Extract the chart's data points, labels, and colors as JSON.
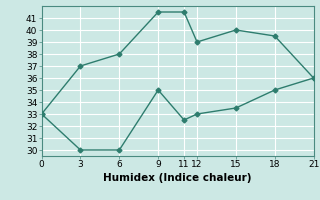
{
  "line1_x": [
    0,
    3,
    6,
    9,
    11,
    12,
    15,
    18,
    21
  ],
  "line1_y": [
    33,
    37,
    38,
    41.5,
    41.5,
    39,
    40,
    39.5,
    36
  ],
  "line2_x": [
    0,
    3,
    6,
    9,
    11,
    12,
    15,
    18,
    21
  ],
  "line2_y": [
    33,
    30,
    30,
    35,
    32.5,
    33,
    33.5,
    35,
    36
  ],
  "line_color": "#2e7d6e",
  "bg_color": "#cce8e4",
  "grid_color": "#ffffff",
  "xlabel": "Humidex (Indice chaleur)",
  "xlim": [
    0,
    21
  ],
  "ylim": [
    29.5,
    42
  ],
  "xticks": [
    0,
    3,
    6,
    9,
    11,
    12,
    15,
    18,
    21
  ],
  "yticks": [
    30,
    31,
    32,
    33,
    34,
    35,
    36,
    37,
    38,
    39,
    40,
    41
  ],
  "xlabel_fontsize": 7.5,
  "tick_fontsize": 6.5,
  "marker": "D",
  "marker_size": 2.5,
  "linewidth": 1.0
}
